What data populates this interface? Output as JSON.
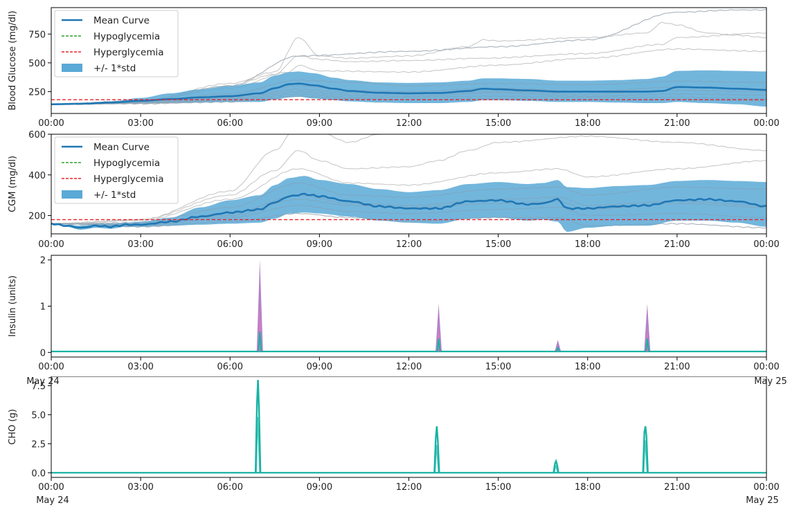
{
  "colors": {
    "mean": "#1f77b4",
    "band": "#5aa9d6",
    "hypo": "#2ca02c",
    "hyper": "#e8202a",
    "traces": "#c8c8c8",
    "insulin_fill": "#9b59b6",
    "insulin_mid": "#e377c2",
    "teal": "#17b3a3"
  },
  "x_ticks": [
    "00:00",
    "03:00",
    "06:00",
    "09:00",
    "12:00",
    "15:00",
    "18:00",
    "21:00",
    "00:00"
  ],
  "date_start": "May 24",
  "date_end": "May 25",
  "chart_data": [
    {
      "type": "line",
      "ylabel": "Blood Glucose (mg/dl)",
      "ylim": [
        60,
        980
      ],
      "yticks": [
        250,
        500,
        750
      ],
      "grid": false,
      "legend_placement": "top-left",
      "legend": [
        "Mean Curve",
        "Hypoglycemia",
        "Hyperglycemia",
        "+/- 1*std"
      ],
      "hyperglycemia_threshold": 180,
      "mean": {
        "x": [
          0,
          1,
          2,
          3,
          4,
          5,
          6,
          7,
          7.5,
          8,
          8.3,
          8.8,
          9.5,
          10,
          11,
          12,
          13,
          14,
          14.5,
          15,
          16,
          17,
          18,
          19,
          20,
          20.5,
          21,
          22,
          23,
          24
        ],
        "y": [
          140,
          145,
          155,
          170,
          185,
          200,
          210,
          235,
          280,
          315,
          320,
          305,
          275,
          255,
          240,
          235,
          238,
          255,
          275,
          270,
          260,
          250,
          250,
          250,
          250,
          255,
          290,
          285,
          275,
          265
        ]
      },
      "std_upper": [
        140,
        147,
        165,
        195,
        235,
        270,
        300,
        330,
        390,
        420,
        425,
        410,
        370,
        350,
        330,
        325,
        330,
        345,
        365,
        365,
        360,
        345,
        345,
        350,
        360,
        380,
        430,
        435,
        430,
        425
      ],
      "std_lower": [
        140,
        143,
        148,
        150,
        152,
        155,
        160,
        160,
        180,
        200,
        205,
        190,
        175,
        165,
        155,
        150,
        150,
        160,
        175,
        175,
        170,
        160,
        160,
        155,
        150,
        150,
        160,
        150,
        140,
        120
      ],
      "traces": [
        {
          "x": [
            0,
            3,
            6,
            7.5,
            8.3,
            9,
            10,
            12,
            14,
            14.5,
            15,
            18,
            20,
            20.5,
            21,
            22,
            23,
            24
          ],
          "y": [
            140,
            170,
            320,
            420,
            720,
            560,
            540,
            560,
            640,
            700,
            690,
            720,
            760,
            850,
            830,
            760,
            740,
            720
          ]
        },
        {
          "x": [
            0,
            3,
            6,
            7.5,
            8.3,
            9,
            10,
            12,
            14.5,
            18,
            20.5,
            21,
            24
          ],
          "y": [
            140,
            165,
            300,
            400,
            560,
            530,
            510,
            520,
            540,
            580,
            660,
            720,
            760
          ]
        },
        {
          "x": [
            0,
            3,
            6,
            8,
            8.3,
            9,
            12,
            15,
            18,
            21,
            24
          ],
          "y": [
            140,
            165,
            280,
            420,
            480,
            430,
            420,
            480,
            540,
            620,
            600
          ]
        },
        {
          "x": [
            0,
            3,
            6,
            8.3,
            10,
            12,
            15,
            18,
            21,
            24
          ],
          "y": [
            140,
            160,
            230,
            350,
            330,
            300,
            320,
            310,
            340,
            330
          ]
        },
        {
          "x": [
            0,
            3,
            6,
            8.3,
            10,
            12,
            15,
            18,
            21,
            24
          ],
          "y": [
            140,
            155,
            200,
            300,
            260,
            250,
            280,
            250,
            290,
            270
          ]
        },
        {
          "x": [
            0,
            3,
            6,
            8.3,
            10,
            12,
            15,
            18,
            21,
            24
          ],
          "y": [
            140,
            150,
            180,
            250,
            220,
            210,
            240,
            210,
            230,
            220
          ]
        },
        {
          "x": [
            0,
            3,
            6,
            8.3,
            10,
            12,
            15,
            18,
            21,
            24
          ],
          "y": [
            140,
            148,
            170,
            230,
            200,
            200,
            210,
            200,
            200,
            190
          ]
        },
        {
          "x": [
            0,
            3,
            6,
            8.3,
            10,
            12,
            15,
            18,
            21,
            24
          ],
          "y": [
            140,
            150,
            190,
            270,
            240,
            230,
            250,
            230,
            260,
            250
          ]
        },
        {
          "x": [
            0,
            3,
            6,
            8.3,
            10,
            12,
            15,
            18,
            21,
            24
          ],
          "y": [
            140,
            145,
            160,
            210,
            190,
            180,
            190,
            180,
            180,
            170
          ]
        },
        {
          "x": [
            0,
            3,
            6,
            8.3,
            12,
            15,
            18,
            21,
            23,
            24
          ],
          "y": [
            140,
            170,
            300,
            560,
            600,
            640,
            700,
            940,
            960,
            960
          ]
        }
      ]
    },
    {
      "type": "line",
      "ylabel": "CGM (mg/dl)",
      "ylim": [
        110,
        600
      ],
      "yticks": [
        200,
        400,
        600
      ],
      "grid": false,
      "legend_placement": "top-left",
      "legend": [
        "Mean Curve",
        "Hypoglycemia",
        "Hyperglycemia",
        "+/- 1*std"
      ],
      "hyperglycemia_threshold": 180,
      "mean": {
        "x": [
          0,
          0.5,
          1,
          1.5,
          2,
          2.5,
          3,
          4,
          5,
          6,
          7,
          7.5,
          8,
          8.5,
          9,
          10,
          11,
          12,
          13,
          14,
          15,
          16,
          16.5,
          17,
          17.3,
          18,
          19,
          20,
          21,
          22,
          23,
          24
        ],
        "y": [
          160,
          150,
          140,
          150,
          145,
          155,
          155,
          170,
          195,
          215,
          230,
          265,
          295,
          305,
          295,
          270,
          245,
          235,
          235,
          270,
          275,
          255,
          260,
          280,
          235,
          235,
          245,
          250,
          275,
          280,
          270,
          245
        ]
      },
      "std_upper": [
        160,
        155,
        150,
        160,
        160,
        165,
        170,
        190,
        240,
        275,
        300,
        350,
        385,
        395,
        375,
        355,
        330,
        315,
        325,
        355,
        365,
        355,
        360,
        375,
        340,
        335,
        345,
        350,
        370,
        375,
        370,
        365
      ],
      "std_lower": [
        160,
        145,
        130,
        140,
        135,
        145,
        145,
        150,
        155,
        160,
        165,
        185,
        210,
        215,
        210,
        195,
        175,
        165,
        160,
        185,
        190,
        175,
        180,
        170,
        120,
        140,
        150,
        150,
        175,
        175,
        165,
        145
      ],
      "traces": [
        {
          "x": [
            0,
            3,
            6,
            7.5,
            8.3,
            9,
            10,
            11,
            12.2,
            12.6
          ],
          "y": [
            160,
            180,
            320,
            520,
            650,
            610,
            560,
            600,
            620,
            610
          ]
        },
        {
          "x": [
            0,
            3,
            6,
            7.5,
            8.3,
            9,
            10,
            12,
            13,
            14,
            15,
            18,
            21,
            24
          ],
          "y": [
            160,
            180,
            300,
            420,
            520,
            470,
            430,
            440,
            470,
            520,
            560,
            590,
            560,
            520
          ]
        },
        {
          "x": [
            0,
            3,
            6,
            8.3,
            10,
            12,
            15,
            17,
            18,
            21,
            24
          ],
          "y": [
            160,
            175,
            280,
            430,
            360,
            350,
            410,
            430,
            390,
            430,
            470
          ]
        },
        {
          "x": [
            0,
            3,
            6,
            8.3,
            10,
            12,
            15,
            17,
            18,
            21,
            24
          ],
          "y": [
            160,
            165,
            240,
            360,
            300,
            290,
            330,
            340,
            300,
            340,
            330
          ]
        },
        {
          "x": [
            0,
            3,
            6,
            8.3,
            10,
            12,
            15,
            17,
            18,
            21,
            24
          ],
          "y": [
            160,
            160,
            210,
            300,
            260,
            250,
            280,
            290,
            250,
            270,
            250
          ]
        },
        {
          "x": [
            0,
            3,
            6,
            8.3,
            10,
            12,
            15,
            17,
            18,
            21,
            24
          ],
          "y": [
            160,
            150,
            190,
            250,
            220,
            210,
            230,
            240,
            200,
            210,
            190
          ]
        },
        {
          "x": [
            0,
            3,
            6,
            8.3,
            10,
            12,
            15,
            17,
            18,
            21,
            24
          ],
          "y": [
            160,
            145,
            170,
            210,
            190,
            170,
            190,
            190,
            150,
            160,
            140
          ]
        },
        {
          "x": [
            0,
            3,
            6,
            8.3,
            10,
            12,
            15,
            17,
            18,
            21,
            24
          ],
          "y": [
            160,
            155,
            200,
            280,
            250,
            240,
            260,
            270,
            230,
            260,
            240
          ]
        }
      ]
    },
    {
      "type": "line",
      "ylabel": "Insulin (units)",
      "ylim": [
        -0.1,
        2.1
      ],
      "yticks": [
        0,
        1,
        2
      ],
      "grid": false,
      "spikes": [
        {
          "x": 7.0,
          "max": 2.0,
          "mid": 1.0,
          "low": 0.45
        },
        {
          "x": 13.0,
          "max": 1.05,
          "mid": 0.55,
          "low": 0.3
        },
        {
          "x": 17.0,
          "max": 0.27,
          "mid": 0.15,
          "low": 0.1
        },
        {
          "x": 20.0,
          "max": 1.05,
          "mid": 0.5,
          "low": 0.3
        }
      ],
      "baseline": 0.02
    },
    {
      "type": "line",
      "ylabel": "CHO (g)",
      "ylim": [
        -0.4,
        8.3
      ],
      "yticks": [
        0.0,
        2.5,
        5.0,
        7.5
      ],
      "grid": false,
      "spikes": [
        {
          "x": 6.95,
          "max": 8.0,
          "mid": 6.0
        },
        {
          "x": 12.95,
          "max": 4.0,
          "mid": 3.0
        },
        {
          "x": 16.95,
          "max": 1.0,
          "mid": 0.8
        },
        {
          "x": 19.95,
          "max": 4.0,
          "mid": 3.5
        }
      ],
      "baseline": 0.0
    }
  ]
}
